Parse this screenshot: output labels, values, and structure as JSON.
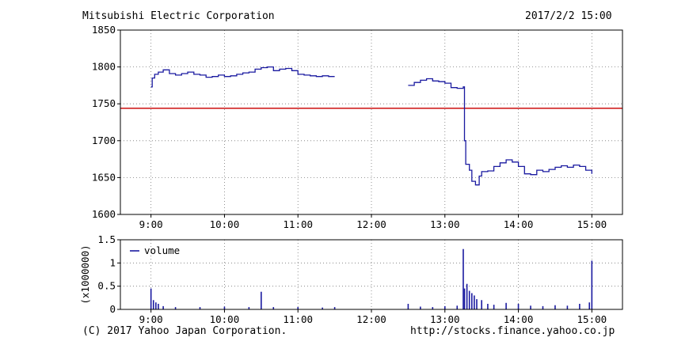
{
  "header": {
    "company": "Mitsubishi Electric Corporation",
    "datetime": "2017/2/2 15:00"
  },
  "footer": {
    "copyright": "(C) 2017 Yahoo Japan Corporation.",
    "url": "http://stocks.finance.yahoo.co.jp"
  },
  "colors": {
    "price_line": "#1a1aa0",
    "reference_line": "#d02020",
    "volume_bars": "#1a1aa0",
    "grid": "#777777"
  },
  "chart_data": [
    {
      "type": "line",
      "ylim": [
        1600,
        1850
      ],
      "yticks": [
        1600,
        1650,
        1700,
        1750,
        1800,
        1850
      ],
      "xlim": [
        "8:35",
        "15:25"
      ],
      "xticks": [
        "9:00",
        "10:00",
        "11:00",
        "12:00",
        "13:00",
        "14:00",
        "15:00"
      ],
      "grid": true,
      "reference_line": 1744,
      "series": [
        {
          "values_morning": [
            [
              "9:00",
              1773
            ],
            [
              "9:01",
              1785
            ],
            [
              "9:03",
              1790
            ],
            [
              "9:06",
              1793
            ],
            [
              "9:10",
              1796
            ],
            [
              "9:15",
              1791
            ],
            [
              "9:20",
              1789
            ],
            [
              "9:25",
              1791
            ],
            [
              "9:30",
              1793
            ],
            [
              "9:35",
              1790
            ],
            [
              "9:40",
              1789
            ],
            [
              "9:45",
              1786
            ],
            [
              "9:50",
              1787
            ],
            [
              "9:55",
              1789
            ],
            [
              "10:00",
              1787
            ],
            [
              "10:05",
              1788
            ],
            [
              "10:10",
              1790
            ],
            [
              "10:15",
              1792
            ],
            [
              "10:20",
              1793
            ],
            [
              "10:25",
              1797
            ],
            [
              "10:30",
              1799
            ],
            [
              "10:35",
              1800
            ],
            [
              "10:40",
              1795
            ],
            [
              "10:45",
              1797
            ],
            [
              "10:50",
              1798
            ],
            [
              "10:55",
              1795
            ],
            [
              "11:00",
              1790
            ],
            [
              "11:05",
              1789
            ],
            [
              "11:10",
              1788
            ],
            [
              "11:15",
              1787
            ],
            [
              "11:20",
              1788
            ],
            [
              "11:25",
              1787
            ],
            [
              "11:30",
              1787
            ]
          ],
          "values_afternoon": [
            [
              "12:30",
              1775
            ],
            [
              "12:35",
              1779
            ],
            [
              "12:40",
              1782
            ],
            [
              "12:45",
              1784
            ],
            [
              "12:50",
              1781
            ],
            [
              "12:55",
              1780
            ],
            [
              "13:00",
              1778
            ],
            [
              "13:05",
              1772
            ],
            [
              "13:10",
              1771
            ],
            [
              "13:15",
              1773
            ],
            [
              "13:16",
              1700
            ],
            [
              "13:17",
              1668
            ],
            [
              "13:20",
              1660
            ],
            [
              "13:22",
              1645
            ],
            [
              "13:25",
              1640
            ],
            [
              "13:28",
              1652
            ],
            [
              "13:30",
              1658
            ],
            [
              "13:35",
              1659
            ],
            [
              "13:40",
              1665
            ],
            [
              "13:45",
              1670
            ],
            [
              "13:50",
              1674
            ],
            [
              "13:55",
              1671
            ],
            [
              "14:00",
              1665
            ],
            [
              "14:05",
              1655
            ],
            [
              "14:10",
              1654
            ],
            [
              "14:15",
              1660
            ],
            [
              "14:20",
              1658
            ],
            [
              "14:25",
              1661
            ],
            [
              "14:30",
              1664
            ],
            [
              "14:35",
              1666
            ],
            [
              "14:40",
              1664
            ],
            [
              "14:45",
              1667
            ],
            [
              "14:50",
              1665
            ],
            [
              "14:55",
              1660
            ],
            [
              "15:00",
              1655
            ]
          ]
        }
      ]
    },
    {
      "type": "bar",
      "ylabel": "(x1000000)",
      "ylim": [
        0,
        1.5
      ],
      "yticks": [
        "0",
        "0.5",
        "1",
        "1.5"
      ],
      "xticks": [
        "9:00",
        "10:00",
        "11:00",
        "12:00",
        "13:00",
        "14:00",
        "15:00"
      ],
      "legend": "volume",
      "legend_position": "top-left",
      "series": [
        {
          "name": "volume",
          "values": [
            [
              "9:00",
              0.45
            ],
            [
              "9:02",
              0.2
            ],
            [
              "9:04",
              0.15
            ],
            [
              "9:06",
              0.12
            ],
            [
              "9:10",
              0.07
            ],
            [
              "9:20",
              0.05
            ],
            [
              "9:40",
              0.05
            ],
            [
              "10:00",
              0.06
            ],
            [
              "10:20",
              0.05
            ],
            [
              "10:30",
              0.38
            ],
            [
              "10:40",
              0.05
            ],
            [
              "11:00",
              0.05
            ],
            [
              "11:20",
              0.04
            ],
            [
              "11:30",
              0.05
            ],
            [
              "12:30",
              0.12
            ],
            [
              "12:40",
              0.06
            ],
            [
              "12:50",
              0.05
            ],
            [
              "13:00",
              0.07
            ],
            [
              "13:10",
              0.08
            ],
            [
              "13:15",
              1.3
            ],
            [
              "13:16",
              0.45
            ],
            [
              "13:18",
              0.55
            ],
            [
              "13:20",
              0.4
            ],
            [
              "13:22",
              0.35
            ],
            [
              "13:24",
              0.3
            ],
            [
              "13:26",
              0.22
            ],
            [
              "13:30",
              0.2
            ],
            [
              "13:35",
              0.12
            ],
            [
              "13:40",
              0.1
            ],
            [
              "13:50",
              0.14
            ],
            [
              "14:00",
              0.12
            ],
            [
              "14:10",
              0.08
            ],
            [
              "14:20",
              0.07
            ],
            [
              "14:30",
              0.09
            ],
            [
              "14:40",
              0.08
            ],
            [
              "14:50",
              0.12
            ],
            [
              "14:58",
              0.15
            ],
            [
              "15:00",
              1.05
            ]
          ]
        }
      ]
    }
  ]
}
